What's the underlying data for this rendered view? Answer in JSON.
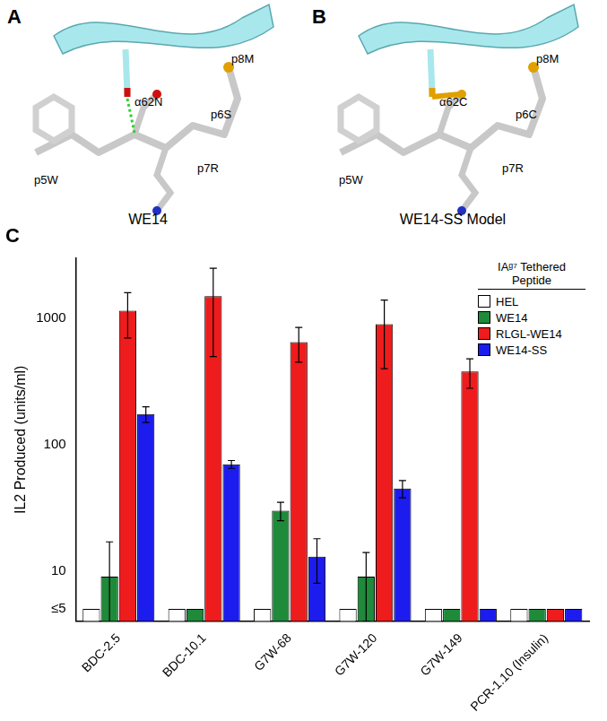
{
  "panels": [
    {
      "letter": "A",
      "caption": "WE14",
      "labels": [
        "α62N",
        "p5W",
        "p6S",
        "p7R",
        "p8M"
      ]
    },
    {
      "letter": "B",
      "caption": "WE14-SS Model",
      "labels": [
        "α62C",
        "p5W",
        "p6C",
        "p7R",
        "p8M"
      ]
    }
  ],
  "chart_data": {
    "letter": "C",
    "type": "bar",
    "log": "y",
    "ylabel": "IL2 Produced (units/ml)",
    "categories": [
      "BDC-2.5",
      "BDC-10.1",
      "G7W-68",
      "G7W-120",
      "G7W-149",
      "PCR-1.10 (Insulin)"
    ],
    "series": [
      {
        "name": "HEL",
        "color": "#ffffff",
        "values": [
          5,
          5,
          5,
          5,
          5,
          5
        ],
        "errors": [
          0,
          0,
          0,
          0,
          0,
          0
        ]
      },
      {
        "name": "WE14",
        "color": "#1e8a3a",
        "values": [
          9,
          5,
          30,
          9,
          5,
          5
        ],
        "errors": [
          8,
          0,
          5,
          5,
          0,
          0
        ]
      },
      {
        "name": "RLGL-WE14",
        "color": "#ee1c1c",
        "values": [
          1150,
          1500,
          650,
          900,
          380,
          5
        ],
        "errors": [
          450,
          1000,
          200,
          500,
          100,
          0
        ]
      },
      {
        "name": "WE14-SS",
        "color": "#1c1cee",
        "values": [
          175,
          70,
          13,
          45,
          5,
          5
        ],
        "errors": [
          25,
          5,
          5,
          7,
          0,
          0
        ]
      }
    ],
    "ylim": [
      4,
      3000
    ],
    "yticks": [
      {
        "value": 5,
        "label": "≤5"
      },
      10,
      100,
      1000
    ],
    "legend_title": "IAᵍ⁷ Tethered Peptide",
    "legend": "top right",
    "grid": false
  }
}
